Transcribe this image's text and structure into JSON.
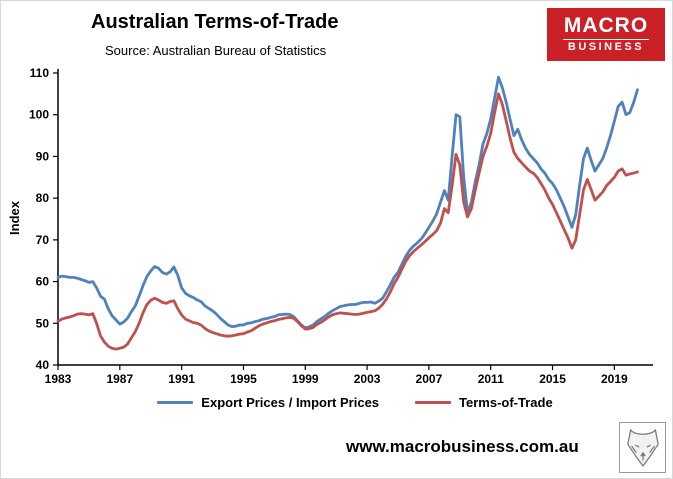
{
  "header": {
    "title": "Australian Terms-of-Trade",
    "subtitle": "Source: Australian Bureau of Statistics"
  },
  "logo": {
    "line1": "MACRO",
    "line2": "BUSINESS",
    "bg_color": "#cb2026",
    "text_color": "#ffffff"
  },
  "footer": {
    "url": "www.macrobusiness.com.au"
  },
  "chart_data": {
    "type": "line",
    "title": "Australian Terms-of-Trade",
    "subtitle": "Source: Australian Bureau of Statistics",
    "xlabel": "",
    "ylabel": "Index",
    "ylim": [
      40,
      110
    ],
    "xlim": [
      1983,
      2021.5
    ],
    "y_ticks": [
      40,
      50,
      60,
      70,
      80,
      90,
      100,
      110
    ],
    "x_ticks": [
      1983,
      1987,
      1991,
      1995,
      1999,
      2003,
      2007,
      2011,
      2015,
      2019
    ],
    "grid": false,
    "legend_position": "bottom",
    "x_start": 1983.0,
    "x_step": 0.25,
    "series": [
      {
        "name": "Export Prices / Import Prices",
        "color": "#4f81bd",
        "values": [
          61.0,
          61.3,
          61.2,
          61.0,
          61.0,
          60.8,
          60.5,
          60.2,
          59.8,
          60.0,
          58.5,
          56.5,
          55.8,
          53.5,
          51.8,
          50.8,
          49.8,
          50.3,
          51.2,
          52.8,
          54.2,
          56.5,
          59.0,
          61.2,
          62.5,
          63.6,
          63.2,
          62.2,
          61.8,
          62.3,
          63.5,
          61.5,
          58.5,
          57.2,
          56.6,
          56.2,
          55.6,
          55.2,
          54.2,
          53.6,
          53.0,
          52.2,
          51.2,
          50.4,
          49.6,
          49.2,
          49.3,
          49.6,
          49.6,
          50.0,
          50.1,
          50.4,
          50.6,
          51.0,
          51.1,
          51.4,
          51.6,
          52.0,
          52.1,
          52.2,
          52.1,
          51.6,
          50.6,
          49.6,
          48.9,
          49.1,
          49.6,
          50.4,
          51.0,
          51.6,
          52.4,
          53.0,
          53.5,
          54.0,
          54.2,
          54.4,
          54.5,
          54.5,
          54.8,
          55.0,
          55.0,
          55.1,
          54.8,
          55.3,
          56.0,
          57.5,
          59.2,
          61.0,
          62.2,
          64.2,
          66.0,
          67.5,
          68.5,
          69.3,
          70.2,
          71.5,
          73.0,
          74.5,
          76.2,
          79.0,
          81.8,
          79.5,
          90.0,
          100.0,
          99.5,
          85.0,
          76.5,
          79.0,
          84.0,
          88.0,
          93.0,
          95.5,
          99.0,
          104.0,
          109.0,
          106.5,
          103.0,
          99.0,
          95.0,
          96.5,
          94.0,
          92.0,
          90.5,
          89.5,
          88.5,
          87.0,
          86.0,
          84.5,
          83.5,
          82.0,
          80.0,
          78.0,
          75.5,
          73.0,
          76.0,
          83.0,
          89.5,
          92.0,
          89.0,
          86.5,
          88.0,
          89.5,
          92.0,
          95.0,
          98.5,
          102.0,
          103.0,
          100.0,
          100.5,
          103.0,
          106.0
        ]
      },
      {
        "name": "Terms-of-Trade",
        "color": "#c0504d",
        "values": [
          50.5,
          51.0,
          51.3,
          51.5,
          51.8,
          52.2,
          52.3,
          52.2,
          52.0,
          52.3,
          50.0,
          47.0,
          45.5,
          44.5,
          44.0,
          43.8,
          44.0,
          44.3,
          45.0,
          46.5,
          48.0,
          50.0,
          52.5,
          54.5,
          55.5,
          56.0,
          55.6,
          55.0,
          54.8,
          55.2,
          55.4,
          53.5,
          52.0,
          51.0,
          50.6,
          50.2,
          50.0,
          49.6,
          48.8,
          48.2,
          47.8,
          47.5,
          47.2,
          47.0,
          46.9,
          47.0,
          47.2,
          47.4,
          47.5,
          47.9,
          48.2,
          48.8,
          49.4,
          49.8,
          50.1,
          50.4,
          50.6,
          50.9,
          51.1,
          51.3,
          51.4,
          51.2,
          50.4,
          49.4,
          48.6,
          48.7,
          49.0,
          49.7,
          50.2,
          50.8,
          51.5,
          52.0,
          52.3,
          52.5,
          52.4,
          52.3,
          52.2,
          52.1,
          52.2,
          52.4,
          52.6,
          52.8,
          53.0,
          53.6,
          54.5,
          55.8,
          57.5,
          59.5,
          61.0,
          63.0,
          64.8,
          66.2,
          67.2,
          68.0,
          68.8,
          69.6,
          70.5,
          71.3,
          72.2,
          74.0,
          77.5,
          76.5,
          83.0,
          90.5,
          88.0,
          79.0,
          75.5,
          77.5,
          82.0,
          86.0,
          90.0,
          92.5,
          95.5,
          100.5,
          105.0,
          102.5,
          98.5,
          94.5,
          91.0,
          89.5,
          88.5,
          87.5,
          86.5,
          86.0,
          85.0,
          83.5,
          82.0,
          80.0,
          78.5,
          76.5,
          74.5,
          72.5,
          70.5,
          68.0,
          70.0,
          76.0,
          82.0,
          84.5,
          82.0,
          79.5,
          80.5,
          81.5,
          83.0,
          84.0,
          85.0,
          86.5,
          87.0,
          85.5,
          85.8,
          86.0,
          86.3
        ]
      }
    ]
  }
}
